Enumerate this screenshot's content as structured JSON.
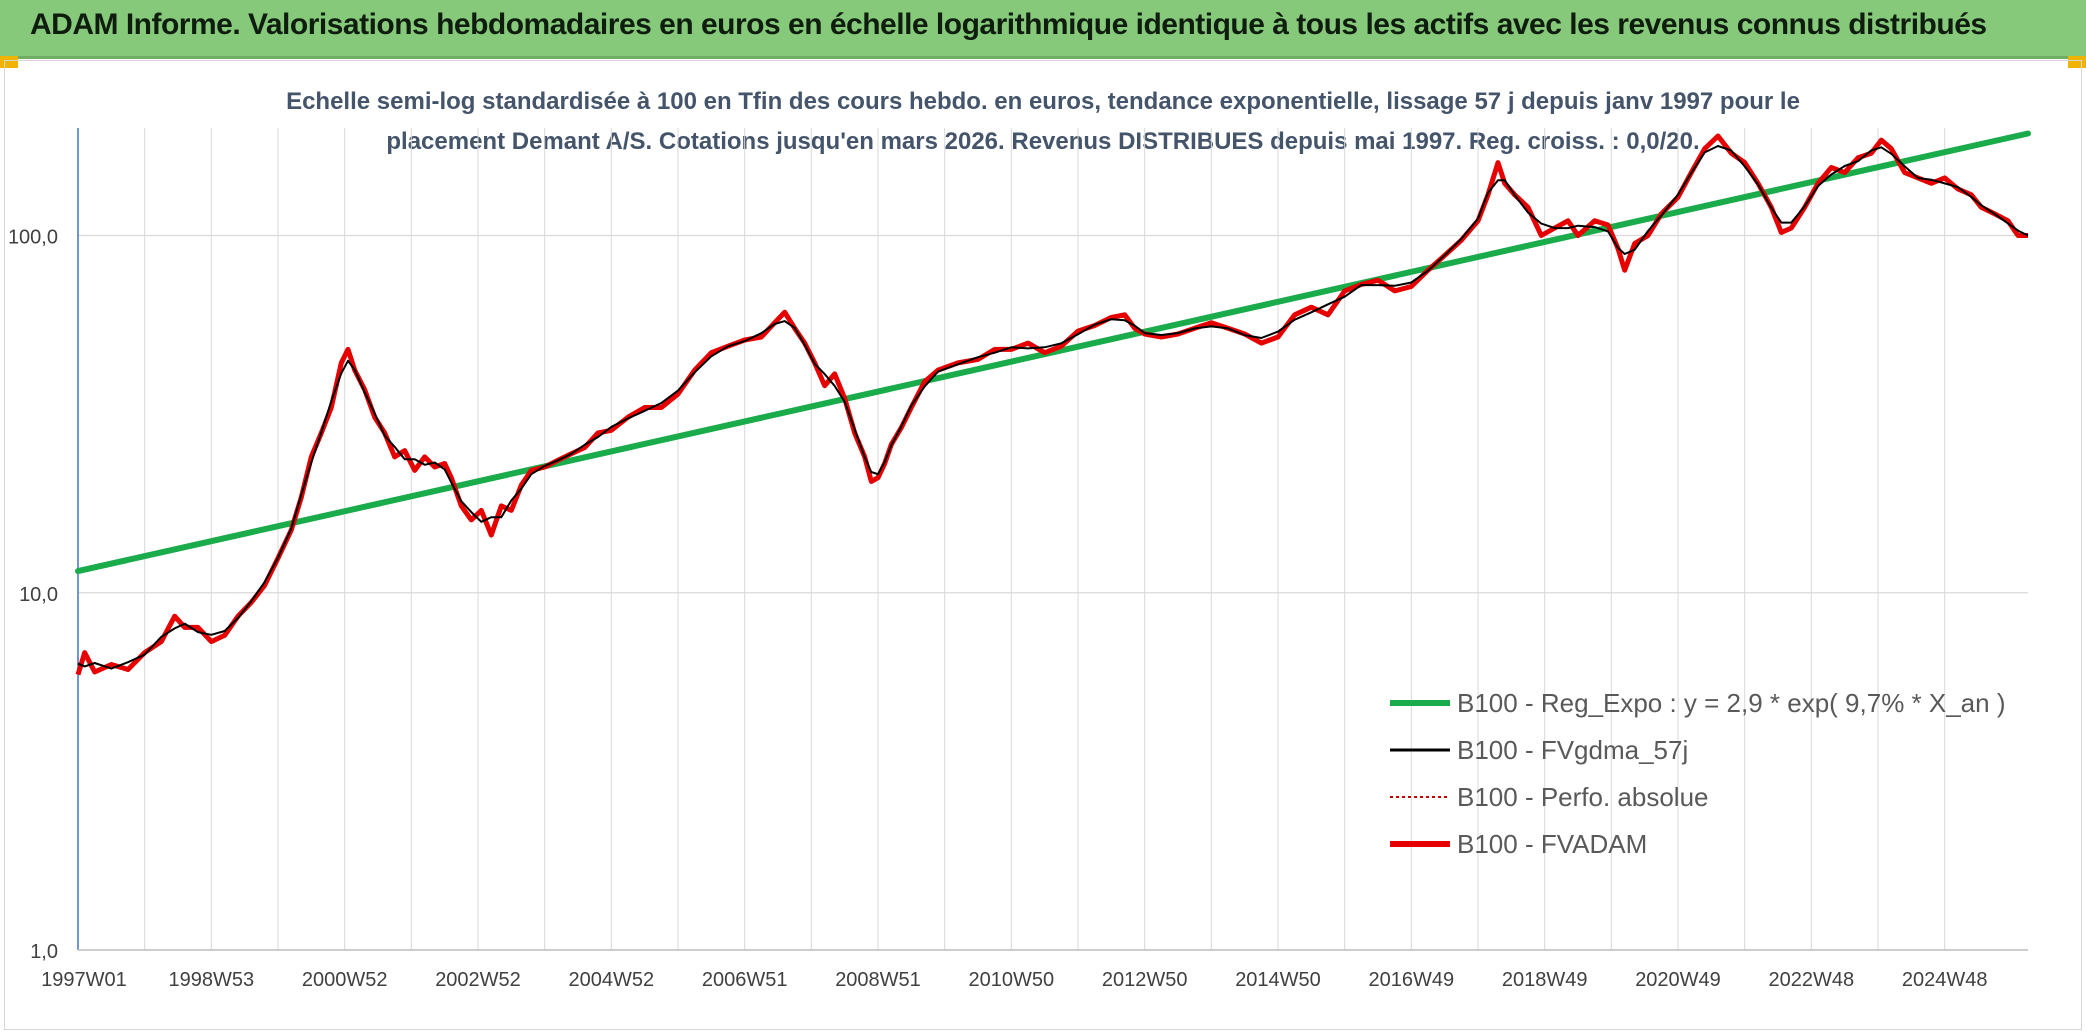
{
  "header": {
    "title": "ADAM Informe. Valorisations hebdomadaires en euros en échelle logarithmique identique à tous les actifs avec les revenus connus distribués"
  },
  "colors": {
    "header_bg": "#86c97a",
    "regression": "#1aab4b",
    "smoothed": "#000000",
    "absolute": "#c00000",
    "fvadam": "#e60000",
    "grid": "#d9d9d9",
    "subtitle": "#44546a"
  },
  "chart_data": {
    "type": "line",
    "title": "",
    "subtitle_lines": [
      "Echelle semi-log standardisée à 100 en Tfin des cours hebdo. en euros, tendance exponentielle, lissage 57 j depuis janv 1997 pour le",
      "placement Demant A/S. Cotations jusqu'en mars 2026. Revenus DISTRIBUES depuis mai 1997. Reg. croiss. : 0,0/20."
    ],
    "xlabel": "",
    "ylabel": "",
    "y_scale": "log",
    "ylim": [
      1,
      200
    ],
    "y_ticks": [
      {
        "value": 1,
        "label": "1,0"
      },
      {
        "value": 10,
        "label": "10,0"
      },
      {
        "value": 100,
        "label": "100,0"
      }
    ],
    "xlim": [
      1997.0,
      2026.25
    ],
    "x_ticks": [
      {
        "x": 1997.0,
        "label": "1997W01"
      },
      {
        "x": 1999.0,
        "label": "1998W53"
      },
      {
        "x": 2001.0,
        "label": "2000W52"
      },
      {
        "x": 2003.0,
        "label": "2002W52"
      },
      {
        "x": 2005.0,
        "label": "2004W52"
      },
      {
        "x": 2007.0,
        "label": "2006W51"
      },
      {
        "x": 2009.0,
        "label": "2008W51"
      },
      {
        "x": 2011.0,
        "label": "2010W50"
      },
      {
        "x": 2013.0,
        "label": "2012W50"
      },
      {
        "x": 2015.0,
        "label": "2014W50"
      },
      {
        "x": 2017.0,
        "label": "2016W49"
      },
      {
        "x": 2019.0,
        "label": "2018W49"
      },
      {
        "x": 2021.0,
        "label": "2020W49"
      },
      {
        "x": 2023.0,
        "label": "2022W48"
      },
      {
        "x": 2025.0,
        "label": "2024W48"
      }
    ],
    "grid": true,
    "legend_position": "lower-right",
    "series": [
      {
        "name": "B100 - Reg_Expo : y = 2,9 * exp( 9,7% *  X_an )",
        "style": "thick-green",
        "points": [
          [
            1997.0,
            11.5
          ],
          [
            2026.25,
            193
          ]
        ]
      },
      {
        "name": "B100 - FVgdma_57j",
        "style": "thin-black",
        "points": []
      },
      {
        "name": "B100 - Perfo. absolue",
        "style": "dotted-red",
        "points": []
      },
      {
        "name": "B100 - FVADAM",
        "style": "thick-red",
        "points": [
          [
            1997.0,
            5.9
          ],
          [
            1997.1,
            6.8
          ],
          [
            1997.25,
            6.0
          ],
          [
            1997.5,
            6.3
          ],
          [
            1997.75,
            6.1
          ],
          [
            1998.0,
            6.8
          ],
          [
            1998.25,
            7.3
          ],
          [
            1998.45,
            8.6
          ],
          [
            1998.6,
            8.0
          ],
          [
            1998.8,
            8.0
          ],
          [
            1999.0,
            7.3
          ],
          [
            1999.2,
            7.6
          ],
          [
            1999.4,
            8.6
          ],
          [
            1999.6,
            9.4
          ],
          [
            1999.8,
            10.5
          ],
          [
            2000.0,
            12.5
          ],
          [
            2000.2,
            15.0
          ],
          [
            2000.35,
            18.5
          ],
          [
            2000.5,
            24.0
          ],
          [
            2000.65,
            28.0
          ],
          [
            2000.8,
            33.0
          ],
          [
            2000.95,
            44.0
          ],
          [
            2001.05,
            48.0
          ],
          [
            2001.15,
            42.0
          ],
          [
            2001.3,
            37.0
          ],
          [
            2001.45,
            31.0
          ],
          [
            2001.6,
            28.0
          ],
          [
            2001.75,
            24.0
          ],
          [
            2001.9,
            25.0
          ],
          [
            2002.05,
            22.0
          ],
          [
            2002.2,
            24.0
          ],
          [
            2002.35,
            22.5
          ],
          [
            2002.5,
            23.0
          ],
          [
            2002.6,
            21.0
          ],
          [
            2002.75,
            17.5
          ],
          [
            2002.9,
            16.0
          ],
          [
            2003.05,
            17.0
          ],
          [
            2003.2,
            14.5
          ],
          [
            2003.35,
            17.5
          ],
          [
            2003.5,
            17.0
          ],
          [
            2003.65,
            20.0
          ],
          [
            2003.8,
            22.0
          ],
          [
            2004.0,
            22.5
          ],
          [
            2004.2,
            23.5
          ],
          [
            2004.4,
            24.5
          ],
          [
            2004.6,
            25.5
          ],
          [
            2004.8,
            28.0
          ],
          [
            2005.0,
            28.5
          ],
          [
            2005.25,
            31.0
          ],
          [
            2005.5,
            33.0
          ],
          [
            2005.75,
            33.0
          ],
          [
            2006.0,
            36.0
          ],
          [
            2006.25,
            42.0
          ],
          [
            2006.5,
            47.0
          ],
          [
            2006.75,
            49.0
          ],
          [
            2007.0,
            51.0
          ],
          [
            2007.25,
            52.0
          ],
          [
            2007.45,
            57.0
          ],
          [
            2007.6,
            61.0
          ],
          [
            2007.75,
            55.0
          ],
          [
            2007.9,
            50.0
          ],
          [
            2008.05,
            44.0
          ],
          [
            2008.2,
            38.0
          ],
          [
            2008.35,
            41.0
          ],
          [
            2008.5,
            35.0
          ],
          [
            2008.65,
            28.0
          ],
          [
            2008.8,
            24.0
          ],
          [
            2008.9,
            20.5
          ],
          [
            2009.0,
            21.0
          ],
          [
            2009.1,
            23.0
          ],
          [
            2009.2,
            26.0
          ],
          [
            2009.35,
            29.0
          ],
          [
            2009.5,
            33.0
          ],
          [
            2009.7,
            39.0
          ],
          [
            2009.9,
            42.0
          ],
          [
            2010.2,
            44.0
          ],
          [
            2010.5,
            45.0
          ],
          [
            2010.75,
            48.0
          ],
          [
            2011.0,
            48.0
          ],
          [
            2011.25,
            50.0
          ],
          [
            2011.5,
            47.0
          ],
          [
            2011.75,
            49.0
          ],
          [
            2012.0,
            54.0
          ],
          [
            2012.25,
            56.0
          ],
          [
            2012.5,
            59.0
          ],
          [
            2012.7,
            60.0
          ],
          [
            2012.85,
            55.0
          ],
          [
            2013.0,
            53.0
          ],
          [
            2013.25,
            52.0
          ],
          [
            2013.5,
            53.0
          ],
          [
            2013.75,
            55.0
          ],
          [
            2014.0,
            57.0
          ],
          [
            2014.25,
            55.0
          ],
          [
            2014.5,
            53.0
          ],
          [
            2014.75,
            50.0
          ],
          [
            2015.0,
            52.0
          ],
          [
            2015.25,
            60.0
          ],
          [
            2015.5,
            63.0
          ],
          [
            2015.75,
            60.0
          ],
          [
            2016.0,
            70.0
          ],
          [
            2016.25,
            73.0
          ],
          [
            2016.5,
            75.0
          ],
          [
            2016.75,
            70.0
          ],
          [
            2017.0,
            72.0
          ],
          [
            2017.25,
            80.0
          ],
          [
            2017.5,
            88.0
          ],
          [
            2017.75,
            97.0
          ],
          [
            2018.0,
            110.0
          ],
          [
            2018.15,
            130.0
          ],
          [
            2018.3,
            160.0
          ],
          [
            2018.4,
            140.0
          ],
          [
            2018.55,
            130.0
          ],
          [
            2018.75,
            120.0
          ],
          [
            2018.95,
            100.0
          ],
          [
            2019.15,
            105.0
          ],
          [
            2019.35,
            110.0
          ],
          [
            2019.5,
            100.0
          ],
          [
            2019.75,
            110.0
          ],
          [
            2019.95,
            107.0
          ],
          [
            2020.1,
            92.0
          ],
          [
            2020.2,
            80.0
          ],
          [
            2020.35,
            95.0
          ],
          [
            2020.55,
            100.0
          ],
          [
            2020.75,
            115.0
          ],
          [
            2021.0,
            128.0
          ],
          [
            2021.2,
            150.0
          ],
          [
            2021.4,
            175.0
          ],
          [
            2021.6,
            190.0
          ],
          [
            2021.8,
            170.0
          ],
          [
            2022.0,
            160.0
          ],
          [
            2022.2,
            140.0
          ],
          [
            2022.4,
            120.0
          ],
          [
            2022.55,
            102.0
          ],
          [
            2022.7,
            105.0
          ],
          [
            2022.9,
            120.0
          ],
          [
            2023.1,
            140.0
          ],
          [
            2023.3,
            155.0
          ],
          [
            2023.5,
            150.0
          ],
          [
            2023.7,
            165.0
          ],
          [
            2023.9,
            170.0
          ],
          [
            2024.05,
            185.0
          ],
          [
            2024.2,
            175.0
          ],
          [
            2024.4,
            150.0
          ],
          [
            2024.6,
            145.0
          ],
          [
            2024.8,
            140.0
          ],
          [
            2025.0,
            145.0
          ],
          [
            2025.2,
            135.0
          ],
          [
            2025.4,
            130.0
          ],
          [
            2025.55,
            120.0
          ],
          [
            2025.75,
            115.0
          ],
          [
            2025.95,
            110.0
          ],
          [
            2026.1,
            100.0
          ],
          [
            2026.25,
            100.0
          ]
        ]
      }
    ]
  }
}
